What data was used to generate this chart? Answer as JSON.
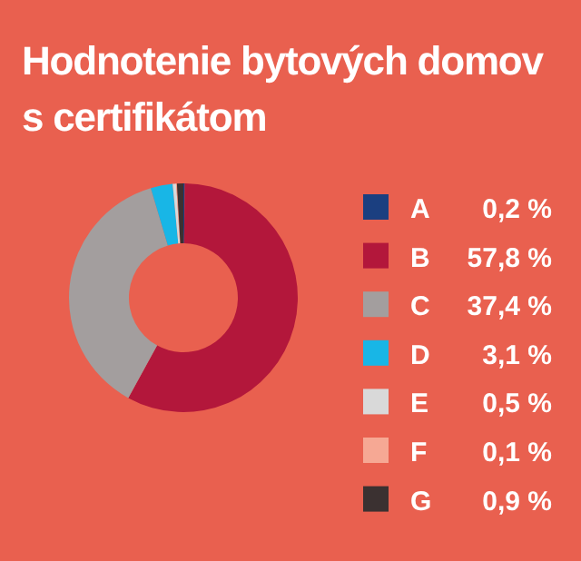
{
  "chart_data": {
    "type": "donut",
    "title": "Hodnotenie bytových domov s certifikátom",
    "categories": [
      "A",
      "B",
      "C",
      "D",
      "E",
      "F",
      "G"
    ],
    "values": [
      0.2,
      57.8,
      37.4,
      3.1,
      0.5,
      0.1,
      0.9
    ],
    "value_labels": [
      "0,2 %",
      "57,8 %",
      "37,4 %",
      "3,1 %",
      "0,5 %",
      "0,1 %",
      "0,9 %"
    ],
    "colors": [
      "#1b3f80",
      "#b3173b",
      "#a39e9e",
      "#18b6e6",
      "#d9d9d9",
      "#f6a894",
      "#3b3131"
    ],
    "legend": "right"
  }
}
